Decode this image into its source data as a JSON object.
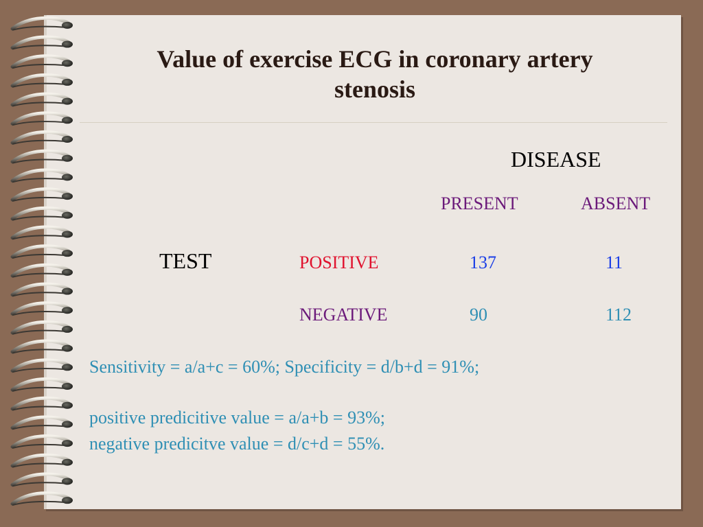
{
  "title_line1": "Value of exercise ECG in coronary artery",
  "title_line2": "stenosis",
  "table": {
    "disease_header": "DISEASE",
    "present_header": "PRESENT",
    "absent_header": "ABSENT",
    "test_label": "TEST",
    "positive_label": "POSITIVE",
    "negative_label": "NEGATIVE",
    "positive_present": "137",
    "positive_absent": "11",
    "negative_present": "90",
    "negative_absent": "112"
  },
  "stats": {
    "sensitivity_specificity": "Sensitivity = a/a+c = 60%; Specificity = d/b+d = 91%;",
    "ppv": "positive predicitive value = a/a+b = 93%;",
    "npv": "negative predicitve value = d/c+d = 55%."
  },
  "colors": {
    "background": "#8a6a55",
    "paper": "#ece7e2",
    "header_purple": "#6b1a7a",
    "positive_red": "#e0122e",
    "value_blue": "#1a3ee6",
    "stat_teal": "#2f8fb4"
  }
}
